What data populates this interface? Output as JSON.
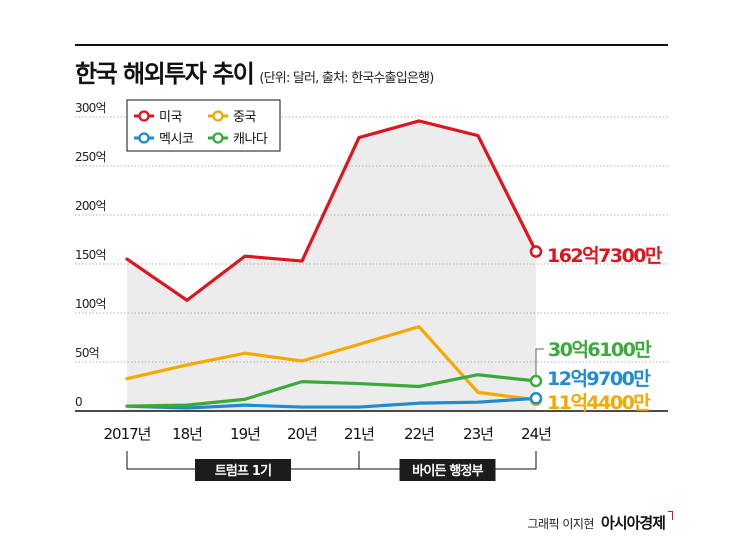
{
  "header": {
    "title": "한국 해외투자 추이",
    "subtitle": "(단위: 달러, 출처: 한국수출입은행)"
  },
  "credit": {
    "text": "그래픽 이지현",
    "brand": "아시아경제"
  },
  "chart_data": {
    "type": "line",
    "categories": [
      "2017년",
      "18년",
      "19년",
      "20년",
      "21년",
      "22년",
      "23년",
      "24년"
    ],
    "yticks": [
      "0",
      "50억",
      "100억",
      "150억",
      "200억",
      "250억",
      "300억"
    ],
    "ylim": [
      0,
      300
    ],
    "unit": "억 달러",
    "grid": true,
    "legend_position": "top-left",
    "series": [
      {
        "name": "미국",
        "color": "#e0141e",
        "values": [
          155,
          113,
          158,
          153,
          279,
          296,
          281,
          162.73
        ],
        "end_label": "162억7300만"
      },
      {
        "name": "중국",
        "color": "#f5a800",
        "values": [
          33,
          47,
          59,
          51,
          68,
          86,
          19,
          11.44
        ],
        "end_label": "11억4400만"
      },
      {
        "name": "멕시코",
        "color": "#1f8bd0",
        "values": [
          5,
          3,
          6,
          4,
          4,
          8,
          9,
          12.97
        ],
        "end_label": "12억9700만"
      },
      {
        "name": "캐나다",
        "color": "#3aab3a",
        "values": [
          5,
          6,
          12,
          30,
          28,
          25,
          37,
          30.61
        ],
        "end_label": "30억6100만"
      }
    ],
    "periods": [
      {
        "label": "트럼프 1기",
        "from": 0,
        "to": 4
      },
      {
        "label": "바이든 행정부",
        "from": 4,
        "to": 7
      }
    ]
  }
}
